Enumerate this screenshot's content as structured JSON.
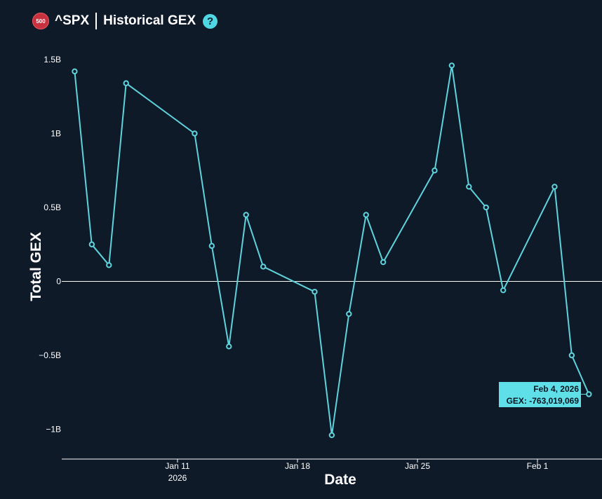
{
  "header": {
    "badge": "500",
    "ticker": "^SPX",
    "title": "Historical GEX",
    "help": "?"
  },
  "colors": {
    "background": "#0f1a29",
    "line": "#5fd3dc",
    "tooltip": "#5fe0e8"
  },
  "chart_data": {
    "type": "line",
    "title": "^SPX | Historical GEX",
    "xlabel": "Date",
    "ylabel": "Total GEX",
    "ylim": [
      -1.2,
      1.5
    ],
    "y_ticks": [
      {
        "value": 1.5,
        "label": "1.5B"
      },
      {
        "value": 1.0,
        "label": "1B"
      },
      {
        "value": 0.5,
        "label": "0.5B"
      },
      {
        "value": 0.0,
        "label": "0"
      },
      {
        "value": -0.5,
        "label": "−0.5B"
      },
      {
        "value": -1.0,
        "label": "−1B"
      }
    ],
    "x_ticks": [
      {
        "day": 11,
        "label": "Jan 11",
        "sublabel": "2026"
      },
      {
        "day": 18,
        "label": "Jan 18",
        "sublabel": ""
      },
      {
        "day": 25,
        "label": "Jan 25",
        "sublabel": ""
      },
      {
        "day": 32,
        "label": "Feb 1",
        "sublabel": ""
      }
    ],
    "series": [
      {
        "name": "Total GEX (B)",
        "points": [
          {
            "day": 5,
            "value": 1.42
          },
          {
            "day": 6,
            "value": 0.25
          },
          {
            "day": 7,
            "value": 0.11
          },
          {
            "day": 8,
            "value": 1.34
          },
          {
            "day": 12,
            "value": 1.0
          },
          {
            "day": 13,
            "value": 0.24
          },
          {
            "day": 14,
            "value": -0.44
          },
          {
            "day": 15,
            "value": 0.45
          },
          {
            "day": 16,
            "value": 0.1
          },
          {
            "day": 19,
            "value": -0.07
          },
          {
            "day": 20,
            "value": -1.04
          },
          {
            "day": 21,
            "value": -0.22
          },
          {
            "day": 22,
            "value": 0.45
          },
          {
            "day": 23,
            "value": 0.13
          },
          {
            "day": 26,
            "value": 0.75
          },
          {
            "day": 27,
            "value": 1.46
          },
          {
            "day": 28,
            "value": 0.64
          },
          {
            "day": 29,
            "value": 0.5
          },
          {
            "day": 30,
            "value": -0.06
          },
          {
            "day": 33,
            "value": 0.64
          },
          {
            "day": 34,
            "value": -0.5
          },
          {
            "day": 35,
            "value": -0.763019069
          }
        ]
      }
    ],
    "tooltip": {
      "date": "Feb 4, 2026",
      "text": "GEX: -763,019,069"
    }
  }
}
